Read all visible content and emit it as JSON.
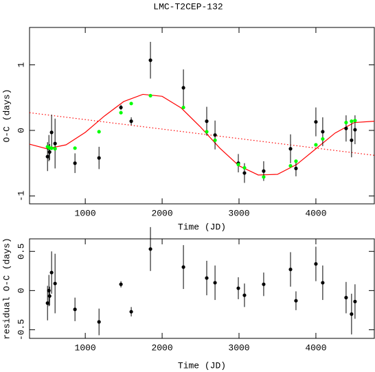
{
  "chart_data": [
    {
      "type": "scatter",
      "title": "LMC-T2CEP-132",
      "xlabel": "Time (JD)",
      "ylabel": "O-C (days)",
      "xlim": [
        275,
        4760
      ],
      "ylim": [
        -1.12,
        1.57
      ],
      "xticks": [
        1000,
        2000,
        3000,
        4000
      ],
      "yticks": [
        -1,
        0,
        1
      ],
      "series": [
        {
          "style": "dotted",
          "color": "#ff0000",
          "x": [
            275,
            4760
          ],
          "values": [
            0.27,
            -0.38
          ]
        },
        {
          "style": "solid",
          "color": "#ff0000",
          "x": [
            275,
            500,
            750,
            1000,
            1250,
            1500,
            1750,
            2000,
            2250,
            2500,
            2750,
            3000,
            3250,
            3500,
            3750,
            4000,
            4250,
            4500,
            4760
          ],
          "values": [
            -0.21,
            -0.28,
            -0.22,
            -0.03,
            0.22,
            0.44,
            0.55,
            0.52,
            0.34,
            0.05,
            -0.27,
            -0.54,
            -0.68,
            -0.67,
            -0.52,
            -0.28,
            -0.04,
            0.12,
            0.14
          ]
        },
        {
          "style": "errorbar",
          "color": "#000000",
          "x": [
            509,
            527,
            536,
            562,
            607,
            866,
            1179,
            1464,
            1598,
            1848,
            2277,
            2580,
            2688,
            2991,
            3071,
            3321,
            3670,
            3741,
            4000,
            4089,
            4393,
            4464,
            4509
          ],
          "values": [
            -0.4,
            -0.27,
            -0.33,
            -0.03,
            -0.2,
            -0.5,
            -0.42,
            0.35,
            0.14,
            1.07,
            0.65,
            0.14,
            -0.07,
            -0.5,
            -0.65,
            -0.62,
            -0.28,
            -0.58,
            0.13,
            -0.02,
            0.03,
            -0.15,
            0.01
          ],
          "errors": [
            0.22,
            0.2,
            0.12,
            0.27,
            0.38,
            0.15,
            0.17,
            0.04,
            0.06,
            0.28,
            0.28,
            0.22,
            0.22,
            0.14,
            0.15,
            0.15,
            0.22,
            0.12,
            0.22,
            0.22,
            0.2,
            0.26,
            0.22
          ]
        },
        {
          "style": "points",
          "color": "#00ff00",
          "x": [
            509,
            527,
            536,
            562,
            607,
            866,
            1179,
            1464,
            1598,
            1848,
            2277,
            2580,
            2688,
            2991,
            3071,
            3321,
            3670,
            3741,
            4000,
            4089,
            4393,
            4464,
            4509
          ],
          "values": [
            -0.25,
            -0.26,
            -0.27,
            -0.27,
            -0.28,
            -0.27,
            -0.02,
            0.27,
            0.41,
            0.53,
            0.35,
            -0.02,
            -0.15,
            -0.52,
            -0.57,
            -0.71,
            -0.54,
            -0.47,
            -0.22,
            -0.13,
            0.12,
            0.14,
            0.15
          ]
        }
      ]
    },
    {
      "type": "scatter",
      "xlabel": "Time (JD)",
      "ylabel": "residual O-C (days)",
      "xlim": [
        275,
        4760
      ],
      "ylim": [
        -0.61,
        0.66
      ],
      "xticks": [
        1000,
        2000,
        3000,
        4000
      ],
      "yticks": [
        -0.5,
        0,
        0.5
      ],
      "series": [
        {
          "style": "errorbar",
          "color": "#000000",
          "x": [
            509,
            527,
            536,
            562,
            607,
            866,
            1179,
            1464,
            1598,
            1848,
            2277,
            2580,
            2688,
            2991,
            3071,
            3321,
            3670,
            3741,
            4000,
            4089,
            4393,
            4464,
            4509
          ],
          "values": [
            -0.16,
            0.0,
            -0.07,
            0.23,
            0.09,
            -0.24,
            -0.4,
            0.08,
            -0.27,
            0.53,
            0.3,
            0.16,
            0.1,
            0.03,
            -0.06,
            0.08,
            0.27,
            -0.13,
            0.34,
            0.1,
            -0.09,
            -0.3,
            -0.14
          ],
          "errors": [
            0.22,
            0.2,
            0.12,
            0.27,
            0.38,
            0.15,
            0.17,
            0.04,
            0.06,
            0.28,
            0.28,
            0.22,
            0.22,
            0.14,
            0.15,
            0.15,
            0.22,
            0.12,
            0.22,
            0.22,
            0.2,
            0.26,
            0.22
          ]
        }
      ]
    }
  ]
}
